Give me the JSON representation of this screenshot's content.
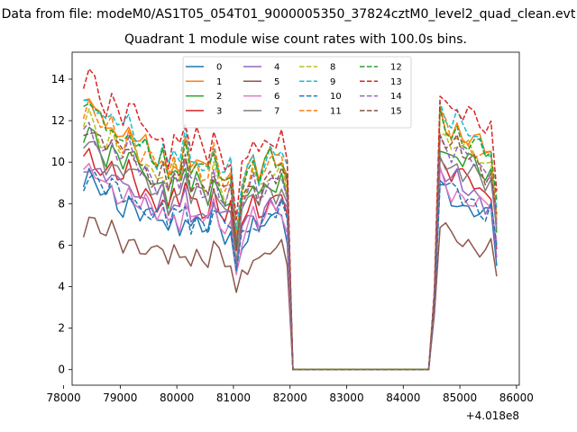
{
  "suptitle": "Data from file: modeM0/AS1T05_054T01_9000005350_37824cztM0_level2_quad_clean.evt",
  "chart_data": {
    "type": "line",
    "title": "Quadrant 1 module wise count rates with 100.0s bins.",
    "xlabel": "",
    "ylabel": "",
    "x_offset_label": "+4.018e8",
    "xlim": [
      78150,
      86050
    ],
    "ylim": [
      -0.75,
      15.3
    ],
    "xticks": [
      78000,
      79000,
      80000,
      81000,
      82000,
      83000,
      84000,
      85000,
      86000
    ],
    "xtick_labels": [
      "78000",
      "79000",
      "80000",
      "81000",
      "82000",
      "83000",
      "84000",
      "85000",
      "86000"
    ],
    "yticks": [
      0,
      2,
      4,
      6,
      8,
      10,
      12,
      14
    ],
    "ytick_labels": [
      "0",
      "2",
      "4",
      "6",
      "8",
      "10",
      "12",
      "14"
    ],
    "grid": false,
    "legend_placement": "top-center",
    "legend_columns": 4,
    "series": [
      {
        "name": "0",
        "color": "#1f77b4",
        "dashed": false,
        "gap": 0.0,
        "end_y": 5.0
      },
      {
        "name": "1",
        "color": "#ff7f0e",
        "dashed": false,
        "gap": 0.02,
        "end_y": 7.0
      },
      {
        "name": "2",
        "color": "#2ca02c",
        "dashed": false,
        "gap": 0.02,
        "end_y": 6.6
      },
      {
        "name": "3",
        "color": "#d62728",
        "dashed": false,
        "gap": 0.01,
        "end_y": 5.8
      },
      {
        "name": "4",
        "color": "#9467bd",
        "dashed": false,
        "gap": 0.0,
        "end_y": 5.4
      },
      {
        "name": "5",
        "color": "#8c564b",
        "dashed": false,
        "gap": 0.0,
        "end_y": 4.5
      },
      {
        "name": "6",
        "color": "#e377c2",
        "dashed": false,
        "gap": 0.0,
        "end_y": 6.2
      },
      {
        "name": "7",
        "color": "#7f7f7f",
        "dashed": false,
        "gap": 0.0,
        "end_y": 6.8
      },
      {
        "name": "8",
        "color": "#bcbd22",
        "dashed": true,
        "gap": 0.01,
        "end_y": 7.4
      },
      {
        "name": "9",
        "color": "#17becf",
        "dashed": true,
        "gap": 0.0,
        "end_y": 7.8
      },
      {
        "name": "10",
        "color": "#1f77b4",
        "dashed": true,
        "gap": 0.0,
        "end_y": 6.0
      },
      {
        "name": "11",
        "color": "#ff7f0e",
        "dashed": true,
        "gap": 0.0,
        "end_y": 7.2
      },
      {
        "name": "12",
        "color": "#2ca02c",
        "dashed": true,
        "gap": 0.01,
        "end_y": 8.2
      },
      {
        "name": "13",
        "color": "#d62728",
        "dashed": true,
        "gap": 0.0,
        "end_y": 8.6
      },
      {
        "name": "14",
        "color": "#9467bd",
        "dashed": true,
        "gap": 0.0,
        "end_y": 7.0
      },
      {
        "name": "15",
        "color": "#8c564b",
        "dashed": true,
        "gap": 0.0,
        "end_y": 7.5
      }
    ],
    "profile_x": [
      78350,
      78450,
      78550,
      78650,
      78750,
      78850,
      78950,
      79050,
      79150,
      79250,
      79350,
      79450,
      79550,
      79650,
      79750,
      79850,
      79950,
      80050,
      80150,
      80250,
      80350,
      80450,
      80550,
      80650,
      80750,
      80850,
      80950,
      81050,
      81150,
      81250,
      81350,
      81450,
      81550,
      81650,
      81750,
      81850,
      81950,
      82050,
      82150,
      82250,
      82350,
      82450,
      82550,
      82650,
      82750,
      82850,
      82950,
      83050,
      83150,
      83250,
      83350,
      83450,
      83550,
      83650,
      83750,
      83850,
      83950,
      84050,
      84150,
      84250,
      84350,
      84450,
      84550,
      84650,
      84750,
      84850,
      84950,
      85050,
      85150,
      85250,
      85350,
      85450,
      85550,
      85650
    ],
    "profile_y": [
      8.8,
      9.2,
      8.9,
      8.5,
      8.2,
      8.6,
      8.1,
      7.8,
      8.3,
      7.9,
      7.5,
      7.6,
      7.2,
      7.0,
      7.4,
      6.6,
      7.3,
      6.9,
      7.7,
      6.8,
      7.2,
      6.8,
      6.6,
      7.5,
      6.8,
      6.4,
      6.7,
      4.6,
      6.2,
      6.6,
      7.1,
      6.5,
      7.0,
      7.3,
      7.1,
      7.4,
      6.6,
      0.0,
      0.0,
      0.0,
      0.0,
      0.0,
      0.0,
      0.0,
      0.0,
      0.0,
      0.0,
      0.0,
      0.0,
      0.0,
      0.0,
      0.0,
      0.0,
      0.0,
      0.0,
      0.0,
      0.0,
      0.0,
      0.0,
      0.0,
      0.0,
      0.0,
      3.0,
      8.8,
      8.4,
      8.1,
      8.3,
      7.9,
      7.9,
      7.8,
      7.6,
      7.3,
      7.5,
      5.0
    ],
    "scales": [
      1.0,
      1.42,
      1.26,
      1.15,
      1.1,
      0.78,
      1.05,
      1.2,
      1.33,
      1.45,
      1.04,
      1.38,
      1.4,
      1.55,
      1.28,
      1.3
    ]
  }
}
